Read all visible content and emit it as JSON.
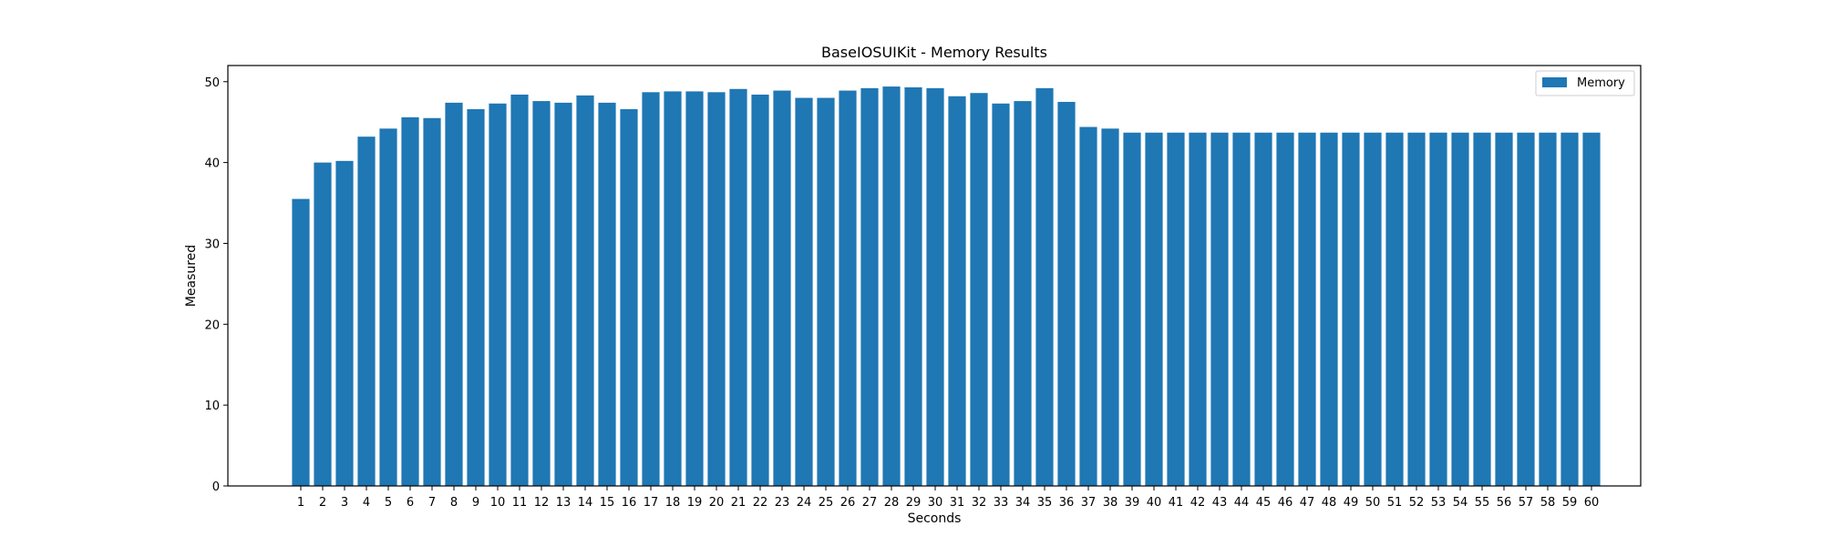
{
  "chart_data": {
    "type": "bar",
    "title": "BaseIOSUIKit - Memory Results",
    "xlabel": "Seconds",
    "ylabel": "Measured",
    "ylim": [
      0,
      52
    ],
    "yticks": [
      0,
      10,
      20,
      30,
      40,
      50
    ],
    "grid": false,
    "legend_position": "top-right",
    "categories": [
      "1",
      "2",
      "3",
      "4",
      "5",
      "6",
      "7",
      "8",
      "9",
      "10",
      "11",
      "12",
      "13",
      "14",
      "15",
      "16",
      "17",
      "18",
      "19",
      "20",
      "21",
      "22",
      "23",
      "24",
      "25",
      "26",
      "27",
      "28",
      "29",
      "30",
      "31",
      "32",
      "33",
      "34",
      "35",
      "36",
      "37",
      "38",
      "39",
      "40",
      "41",
      "42",
      "43",
      "44",
      "45",
      "46",
      "47",
      "48",
      "49",
      "50",
      "51",
      "52",
      "53",
      "54",
      "55",
      "56",
      "57",
      "58",
      "59",
      "60"
    ],
    "series": [
      {
        "name": "Memory",
        "color": "#1f77b4",
        "values": [
          35.5,
          40.0,
          40.2,
          43.2,
          44.2,
          45.6,
          45.5,
          47.4,
          46.6,
          47.3,
          48.4,
          47.6,
          47.4,
          48.3,
          47.4,
          46.6,
          48.7,
          48.8,
          48.8,
          48.7,
          49.1,
          48.4,
          48.9,
          48.0,
          48.0,
          48.9,
          49.2,
          49.4,
          49.3,
          49.2,
          48.2,
          48.6,
          47.3,
          47.6,
          49.2,
          47.5,
          44.4,
          44.2,
          43.7,
          43.7,
          43.7,
          43.7,
          43.7,
          43.7,
          43.7,
          43.7,
          43.7,
          43.7,
          43.7,
          43.7,
          43.7,
          43.7,
          43.7,
          43.7,
          43.7,
          43.7,
          43.7,
          43.7,
          43.7,
          43.7
        ]
      }
    ]
  }
}
